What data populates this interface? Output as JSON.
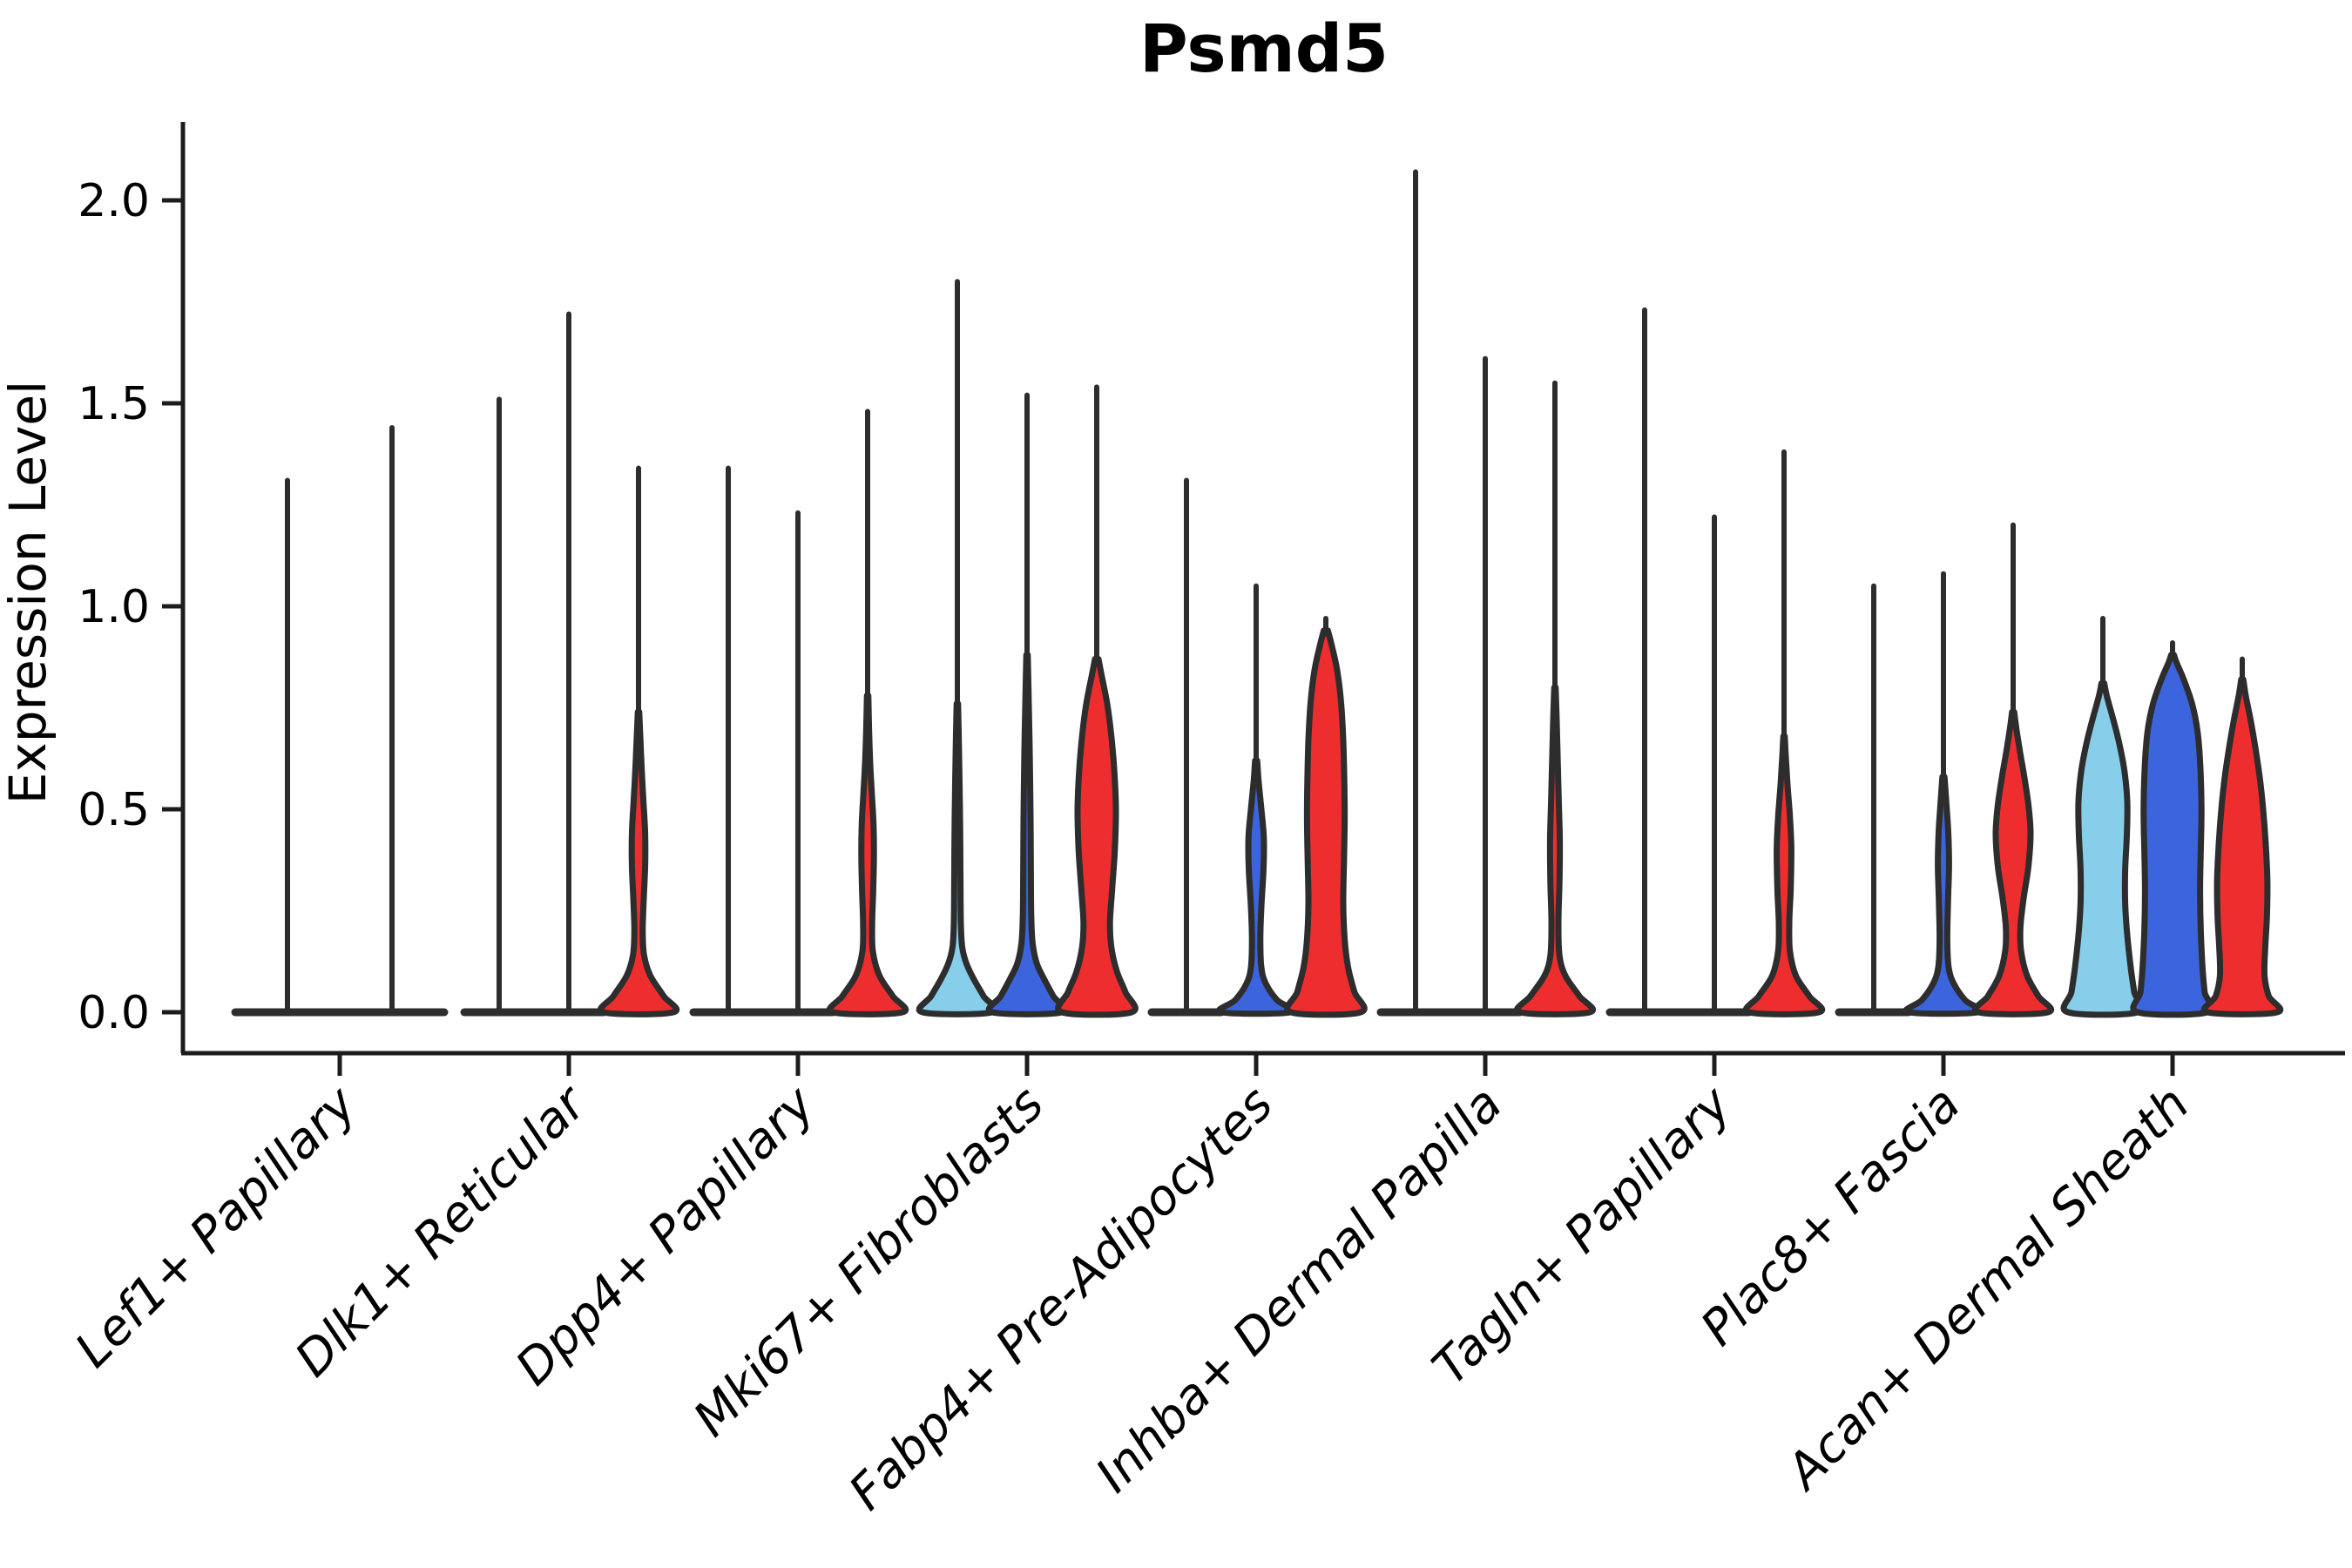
{
  "figure": {
    "title": "Psmd5",
    "ylabel": "Expression Level",
    "xlabel": ""
  },
  "chart_data": {
    "type": "violin",
    "title": "Psmd5",
    "subtitle": "",
    "xlabel": "",
    "ylabel": "Expression Level",
    "yticks": [
      "0.0",
      "0.5",
      "1.0",
      "1.5",
      "2.0"
    ],
    "ytick_values": [
      0.0,
      0.5,
      1.0,
      1.5,
      2.0
    ],
    "ylim": [
      -0.1,
      2.31
    ],
    "grid": false,
    "legend_position": "none",
    "palette": {
      "lightblue": "#87CEEB",
      "blue": "#3C64DC",
      "red": "#EE2E2E",
      "outline": "#2D2D2D",
      "axis": "#1C1C1C"
    },
    "categories": [
      "Lef1+ Papillary",
      "Dlk1+ Reticular",
      "Dpp4+ Papillary",
      "Mki67+ Fibroblasts",
      "Fabp4+ Pre-Adipocytes",
      "Inhba+ Dermal Papilla",
      "Tagln+ Papillary",
      "Plac8+ Fascia",
      "Acan+ Dermal Sheath"
    ],
    "groups": [
      {
        "category": "Lef1+ Papillary",
        "violins": [
          {
            "color": "lightblue",
            "flat": true,
            "spike_top": 1.31,
            "profile": null
          },
          {
            "color": "blue",
            "flat": true,
            "spike_top": 1.44,
            "profile": null
          }
        ]
      },
      {
        "category": "Dlk1+ Reticular",
        "violins": [
          {
            "color": "lightblue",
            "flat": true,
            "spike_top": 1.51,
            "profile": null
          },
          {
            "color": "blue",
            "flat": true,
            "spike_top": 1.72,
            "profile": null
          },
          {
            "color": "red",
            "flat": false,
            "spike_top": 1.34,
            "profile": [
              [
                0,
                1.0
              ],
              [
                0.04,
                0.72
              ],
              [
                0.09,
                0.34
              ],
              [
                0.14,
                0.16
              ],
              [
                0.2,
                0.12
              ],
              [
                0.28,
                0.15
              ],
              [
                0.36,
                0.19
              ],
              [
                0.44,
                0.19
              ],
              [
                0.52,
                0.14
              ],
              [
                0.6,
                0.09
              ],
              [
                0.68,
                0.05
              ],
              [
                0.74,
                0.02
              ]
            ]
          }
        ]
      },
      {
        "category": "Dpp4+ Papillary",
        "violins": [
          {
            "color": "lightblue",
            "flat": true,
            "spike_top": 1.34,
            "profile": null
          },
          {
            "color": "blue",
            "flat": true,
            "spike_top": 1.23,
            "profile": null
          },
          {
            "color": "red",
            "flat": false,
            "spike_top": 1.48,
            "profile": [
              [
                0,
                1.0
              ],
              [
                0.04,
                0.72
              ],
              [
                0.09,
                0.34
              ],
              [
                0.15,
                0.15
              ],
              [
                0.22,
                0.13
              ],
              [
                0.3,
                0.16
              ],
              [
                0.38,
                0.18
              ],
              [
                0.46,
                0.17
              ],
              [
                0.54,
                0.12
              ],
              [
                0.62,
                0.07
              ],
              [
                0.7,
                0.04
              ],
              [
                0.78,
                0.02
              ]
            ]
          }
        ]
      },
      {
        "category": "Mki67+ Fibroblasts",
        "violins": [
          {
            "color": "lightblue",
            "flat": false,
            "spike_top": 1.8,
            "profile": [
              [
                0,
                1.0
              ],
              [
                0.04,
                0.75
              ],
              [
                0.08,
                0.48
              ],
              [
                0.12,
                0.26
              ],
              [
                0.16,
                0.14
              ],
              [
                0.22,
                0.1
              ],
              [
                0.32,
                0.09
              ],
              [
                0.45,
                0.08
              ],
              [
                0.58,
                0.06
              ],
              [
                0.68,
                0.04
              ],
              [
                0.76,
                0.02
              ]
            ]
          },
          {
            "color": "blue",
            "flat": false,
            "spike_top": 1.52,
            "profile": [
              [
                0,
                1.0
              ],
              [
                0.04,
                0.75
              ],
              [
                0.08,
                0.5
              ],
              [
                0.12,
                0.28
              ],
              [
                0.17,
                0.16
              ],
              [
                0.24,
                0.12
              ],
              [
                0.34,
                0.11
              ],
              [
                0.48,
                0.1
              ],
              [
                0.62,
                0.08
              ],
              [
                0.76,
                0.05
              ],
              [
                0.88,
                0.02
              ]
            ]
          },
          {
            "color": "red",
            "flat": false,
            "spike_top": 1.54,
            "profile": [
              [
                0,
                1.0
              ],
              [
                0.05,
                0.82
              ],
              [
                0.1,
                0.58
              ],
              [
                0.16,
                0.42
              ],
              [
                0.22,
                0.38
              ],
              [
                0.3,
                0.44
              ],
              [
                0.4,
                0.52
              ],
              [
                0.5,
                0.55
              ],
              [
                0.6,
                0.5
              ],
              [
                0.68,
                0.42
              ],
              [
                0.76,
                0.3
              ],
              [
                0.83,
                0.14
              ],
              [
                0.87,
                0.05
              ]
            ]
          }
        ]
      },
      {
        "category": "Fabp4+ Pre-Adipocytes",
        "violins": [
          {
            "color": "lightblue",
            "flat": true,
            "spike_top": 1.31,
            "profile": null
          },
          {
            "color": "blue",
            "flat": false,
            "spike_top": 1.05,
            "profile": [
              [
                0,
                1.0
              ],
              [
                0.03,
                0.6
              ],
              [
                0.07,
                0.28
              ],
              [
                0.11,
                0.15
              ],
              [
                0.18,
                0.12
              ],
              [
                0.26,
                0.15
              ],
              [
                0.35,
                0.21
              ],
              [
                0.43,
                0.22
              ],
              [
                0.5,
                0.15
              ],
              [
                0.57,
                0.07
              ],
              [
                0.62,
                0.03
              ]
            ]
          },
          {
            "color": "red",
            "flat": false,
            "spike_top": 0.97,
            "profile": [
              [
                0,
                1.0
              ],
              [
                0.05,
                0.82
              ],
              [
                0.11,
                0.64
              ],
              [
                0.18,
                0.54
              ],
              [
                0.27,
                0.5
              ],
              [
                0.37,
                0.52
              ],
              [
                0.47,
                0.54
              ],
              [
                0.57,
                0.53
              ],
              [
                0.67,
                0.5
              ],
              [
                0.76,
                0.44
              ],
              [
                0.84,
                0.33
              ],
              [
                0.9,
                0.18
              ],
              [
                0.94,
                0.06
              ]
            ]
          }
        ]
      },
      {
        "category": "Inhba+ Dermal Papilla",
        "violins": [
          {
            "color": "lightblue",
            "flat": true,
            "spike_top": 2.07,
            "profile": null
          },
          {
            "color": "blue",
            "flat": true,
            "spike_top": 1.61,
            "profile": null
          },
          {
            "color": "red",
            "flat": false,
            "spike_top": 1.55,
            "profile": [
              [
                0,
                1.0
              ],
              [
                0.04,
                0.7
              ],
              [
                0.09,
                0.3
              ],
              [
                0.14,
                0.13
              ],
              [
                0.22,
                0.1
              ],
              [
                0.32,
                0.13
              ],
              [
                0.42,
                0.14
              ],
              [
                0.52,
                0.11
              ],
              [
                0.62,
                0.08
              ],
              [
                0.72,
                0.05
              ],
              [
                0.8,
                0.02
              ]
            ]
          }
        ]
      },
      {
        "category": "Tagln+ Papillary",
        "violins": [
          {
            "color": "lightblue",
            "flat": true,
            "spike_top": 1.73,
            "profile": null
          },
          {
            "color": "blue",
            "flat": true,
            "spike_top": 1.22,
            "profile": null
          },
          {
            "color": "red",
            "flat": false,
            "spike_top": 1.38,
            "profile": [
              [
                0,
                1.0
              ],
              [
                0.04,
                0.72
              ],
              [
                0.09,
                0.34
              ],
              [
                0.15,
                0.17
              ],
              [
                0.22,
                0.15
              ],
              [
                0.3,
                0.19
              ],
              [
                0.4,
                0.21
              ],
              [
                0.48,
                0.17
              ],
              [
                0.56,
                0.1
              ],
              [
                0.63,
                0.05
              ],
              [
                0.68,
                0.02
              ]
            ]
          }
        ]
      },
      {
        "category": "Plac8+ Fascia",
        "violins": [
          {
            "color": "lightblue",
            "flat": true,
            "spike_top": 1.05,
            "profile": null
          },
          {
            "color": "blue",
            "flat": false,
            "spike_top": 1.08,
            "profile": [
              [
                0,
                1.0
              ],
              [
                0.03,
                0.62
              ],
              [
                0.07,
                0.3
              ],
              [
                0.11,
                0.15
              ],
              [
                0.18,
                0.11
              ],
              [
                0.27,
                0.13
              ],
              [
                0.36,
                0.16
              ],
              [
                0.44,
                0.14
              ],
              [
                0.52,
                0.08
              ],
              [
                0.58,
                0.03
              ]
            ]
          },
          {
            "color": "red",
            "flat": false,
            "spike_top": 1.2,
            "profile": [
              [
                0,
                1.0
              ],
              [
                0.04,
                0.72
              ],
              [
                0.09,
                0.4
              ],
              [
                0.15,
                0.23
              ],
              [
                0.21,
                0.21
              ],
              [
                0.28,
                0.3
              ],
              [
                0.36,
                0.44
              ],
              [
                0.44,
                0.5
              ],
              [
                0.51,
                0.44
              ],
              [
                0.58,
                0.32
              ],
              [
                0.64,
                0.2
              ],
              [
                0.7,
                0.09
              ],
              [
                0.74,
                0.03
              ]
            ]
          }
        ]
      },
      {
        "category": "Acan+ Dermal Sheath",
        "violins": [
          {
            "color": "lightblue",
            "flat": false,
            "spike_top": 0.97,
            "profile": [
              [
                0,
                1.0
              ],
              [
                0.05,
                0.9
              ],
              [
                0.11,
                0.8
              ],
              [
                0.19,
                0.7
              ],
              [
                0.27,
                0.64
              ],
              [
                0.35,
                0.64
              ],
              [
                0.44,
                0.69
              ],
              [
                0.52,
                0.7
              ],
              [
                0.6,
                0.61
              ],
              [
                0.67,
                0.45
              ],
              [
                0.73,
                0.27
              ],
              [
                0.78,
                0.11
              ],
              [
                0.81,
                0.04
              ]
            ]
          },
          {
            "color": "blue",
            "flat": false,
            "spike_top": 0.91,
            "profile": [
              [
                0,
                1.0
              ],
              [
                0.05,
                0.92
              ],
              [
                0.11,
                0.86
              ],
              [
                0.2,
                0.81
              ],
              [
                0.3,
                0.79
              ],
              [
                0.4,
                0.81
              ],
              [
                0.5,
                0.83
              ],
              [
                0.6,
                0.8
              ],
              [
                0.69,
                0.72
              ],
              [
                0.76,
                0.56
              ],
              [
                0.82,
                0.32
              ],
              [
                0.86,
                0.12
              ],
              [
                0.88,
                0.04
              ]
            ]
          },
          {
            "color": "red",
            "flat": false,
            "spike_top": 0.87,
            "profile": [
              [
                0,
                1.0
              ],
              [
                0.04,
                0.76
              ],
              [
                0.09,
                0.64
              ],
              [
                0.16,
                0.66
              ],
              [
                0.24,
                0.71
              ],
              [
                0.33,
                0.72
              ],
              [
                0.42,
                0.67
              ],
              [
                0.5,
                0.6
              ],
              [
                0.58,
                0.5
              ],
              [
                0.65,
                0.38
              ],
              [
                0.72,
                0.24
              ],
              [
                0.78,
                0.1
              ],
              [
                0.82,
                0.03
              ]
            ]
          }
        ]
      }
    ]
  }
}
